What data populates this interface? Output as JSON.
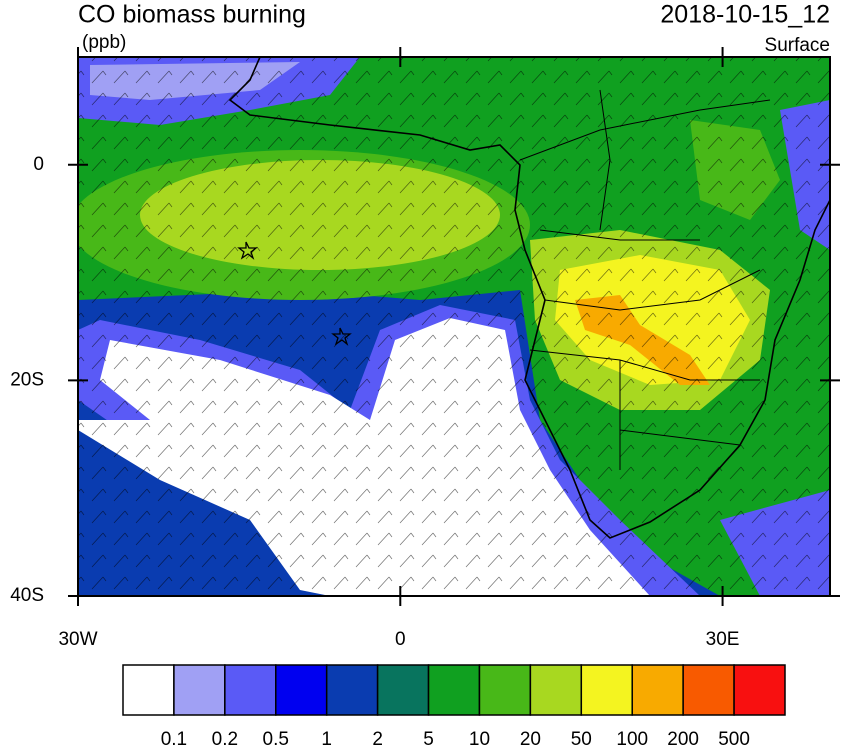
{
  "title": "CO biomass burning",
  "units": "(ppb)",
  "time": "2018-10-15_12",
  "level": "Surface",
  "map": {
    "xlim": [
      -30,
      40
    ],
    "ylim": [
      -40,
      10
    ],
    "xticks": [
      {
        "value": -30,
        "label": "30W"
      },
      0,
      {
        "value": 30,
        "label": "30E"
      }
    ],
    "yticks": [
      0,
      {
        "value": -20,
        "label": "20S"
      },
      {
        "value": -40,
        "label": "40S"
      }
    ]
  },
  "colorbar": {
    "colors": [
      "#ffffff",
      "#a0a0f4",
      "#5a5af6",
      "#0000f0",
      "#0a3cb0",
      "#08745e",
      "#10a020",
      "#48b818",
      "#a8d820",
      "#f4f420",
      "#f8aa00",
      "#f85a00",
      "#f81010"
    ],
    "labels": [
      0.1,
      0.2,
      0.5,
      1,
      2,
      5,
      10,
      20,
      50,
      100,
      200,
      500
    ]
  }
}
